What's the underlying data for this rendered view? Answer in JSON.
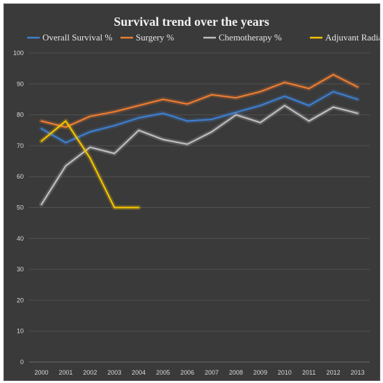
{
  "chart_data": {
    "type": "line",
    "title": "Survival trend over the years",
    "x": [
      2000,
      2001,
      2002,
      2003,
      2004,
      2005,
      2006,
      2007,
      2008,
      2009,
      2010,
      2011,
      2012,
      2013
    ],
    "ylim": [
      0,
      100
    ],
    "yticks": [
      0,
      10,
      20,
      30,
      40,
      50,
      60,
      70,
      80,
      90,
      100
    ],
    "grid": true,
    "legend_position": "top",
    "series": [
      {
        "name": "Overall Survival %",
        "color": "#3e7fd0",
        "values": [
          75.5,
          71,
          74.5,
          76.5,
          79,
          80.5,
          78,
          78.5,
          80.8,
          83,
          86,
          83,
          87.5,
          85
        ]
      },
      {
        "name": "Surgery %",
        "color": "#ed7d31",
        "values": [
          78,
          76,
          79.5,
          81,
          83,
          85,
          83.5,
          86.5,
          85.5,
          87.5,
          90.5,
          88.5,
          93,
          89
        ]
      },
      {
        "name": "Chemotherapy %",
        "color": "#bfbfbf",
        "values": [
          51,
          63.5,
          69.5,
          67.5,
          75,
          72,
          70.5,
          74.5,
          80,
          77.5,
          83,
          78,
          82.5,
          80.5
        ]
      },
      {
        "name": "Adjuvant Radiation %",
        "color": "#f5c400",
        "values": [
          71.5,
          78,
          66,
          50,
          50,
          null,
          null,
          null,
          null,
          null,
          null,
          null,
          null,
          null
        ]
      }
    ]
  }
}
